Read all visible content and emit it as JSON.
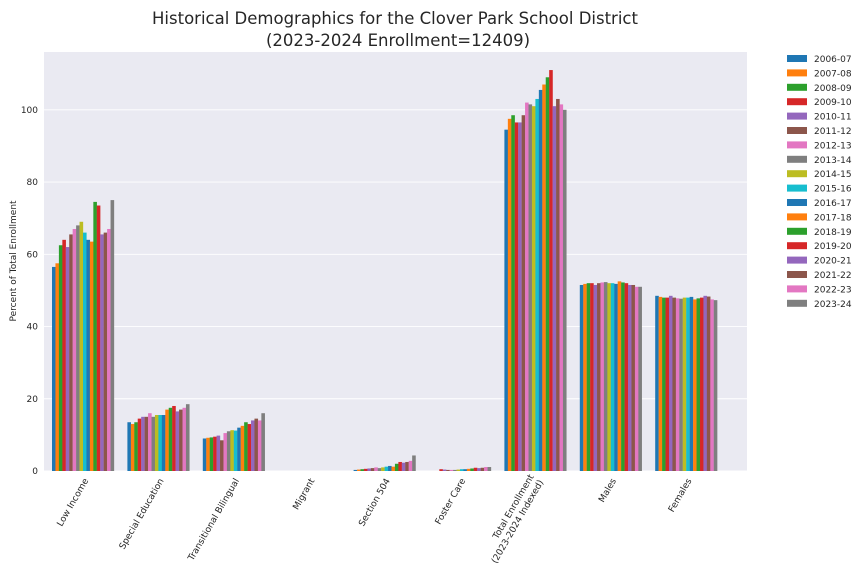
{
  "chart_data": {
    "type": "bar",
    "title": "Historical Demographics for the Clover Park School District",
    "subtitle": "(2023-2024 Enrollment=12409)",
    "ylabel": "Percent of Total Enrollment",
    "xlabel": "",
    "ylim": [
      0,
      116
    ],
    "yticks": [
      0,
      20,
      40,
      60,
      80,
      100
    ],
    "grid": true,
    "legend_position": "outside-right",
    "categories": [
      "Low Income",
      "Special Education",
      "Transitional Bilingual",
      "Migrant",
      "Section 504",
      "Foster Care",
      "Total Enrollment\n(2023-2024 Indexed)",
      "Males",
      "Females"
    ],
    "series": [
      {
        "name": "2006-07",
        "color": "#1f77b4",
        "values": [
          56.5,
          13.5,
          9.0,
          0,
          0.3,
          0.0,
          94.5,
          51.5,
          48.5
        ]
      },
      {
        "name": "2007-08",
        "color": "#ff7f0e",
        "values": [
          57.5,
          13.0,
          9.2,
          0,
          0.4,
          0.0,
          97.5,
          51.8,
          48.2
        ]
      },
      {
        "name": "2008-09",
        "color": "#2ca02c",
        "values": [
          62.5,
          13.5,
          9.3,
          0,
          0.5,
          0.0,
          98.5,
          52.0,
          48.0
        ]
      },
      {
        "name": "2009-10",
        "color": "#d62728",
        "values": [
          64.0,
          14.5,
          9.5,
          0,
          0.6,
          0.5,
          96.5,
          52.0,
          48.0
        ]
      },
      {
        "name": "2010-11",
        "color": "#9467bd",
        "values": [
          62.0,
          15.0,
          9.8,
          0,
          0.7,
          0.4,
          96.5,
          51.5,
          48.5
        ]
      },
      {
        "name": "2011-12",
        "color": "#8c564b",
        "values": [
          65.5,
          15.0,
          8.5,
          0,
          0.8,
          0.3,
          98.5,
          52.0,
          48.0
        ]
      },
      {
        "name": "2012-13",
        "color": "#e377c2",
        "values": [
          67.0,
          16.0,
          10.5,
          0,
          1.0,
          0.3,
          102.0,
          52.2,
          47.8
        ]
      },
      {
        "name": "2013-14",
        "color": "#7f7f7f",
        "values": [
          68.0,
          15.0,
          11.0,
          0,
          0.8,
          0.3,
          101.5,
          52.3,
          47.7
        ]
      },
      {
        "name": "2014-15",
        "color": "#bcbd22",
        "values": [
          69.0,
          15.5,
          11.3,
          0,
          1.0,
          0.4,
          101.0,
          52.0,
          48.0
        ]
      },
      {
        "name": "2015-16",
        "color": "#17becf",
        "values": [
          66.0,
          15.5,
          11.2,
          0,
          1.2,
          0.5,
          103.0,
          52.0,
          48.0
        ]
      },
      {
        "name": "2016-17",
        "color": "#1f77b4",
        "values": [
          64.0,
          15.5,
          12.0,
          0,
          1.4,
          0.5,
          105.5,
          51.8,
          48.2
        ]
      },
      {
        "name": "2017-18",
        "color": "#ff7f0e",
        "values": [
          63.5,
          17.0,
          12.5,
          0,
          1.2,
          0.6,
          107.0,
          52.5,
          47.5
        ]
      },
      {
        "name": "2018-19",
        "color": "#2ca02c",
        "values": [
          74.5,
          17.5,
          13.5,
          0,
          2.0,
          0.7,
          109.0,
          52.2,
          47.8
        ]
      },
      {
        "name": "2019-20",
        "color": "#d62728",
        "values": [
          73.5,
          18.0,
          13.0,
          0,
          2.5,
          0.9,
          111.0,
          52.0,
          48.0
        ]
      },
      {
        "name": "2020-21",
        "color": "#9467bd",
        "values": [
          65.5,
          16.5,
          14.0,
          0,
          2.3,
          0.8,
          101.0,
          51.5,
          48.5
        ]
      },
      {
        "name": "2021-22",
        "color": "#8c564b",
        "values": [
          66.0,
          17.0,
          14.5,
          0,
          2.5,
          0.9,
          103.0,
          51.5,
          48.3
        ]
      },
      {
        "name": "2022-23",
        "color": "#e377c2",
        "values": [
          67.0,
          17.5,
          14.0,
          0,
          2.8,
          1.1,
          101.5,
          51.0,
          47.5
        ]
      },
      {
        "name": "2023-24",
        "color": "#7f7f7f",
        "values": [
          75.0,
          18.5,
          16.0,
          0,
          4.3,
          1.1,
          100.0,
          51.0,
          47.3
        ]
      }
    ]
  }
}
